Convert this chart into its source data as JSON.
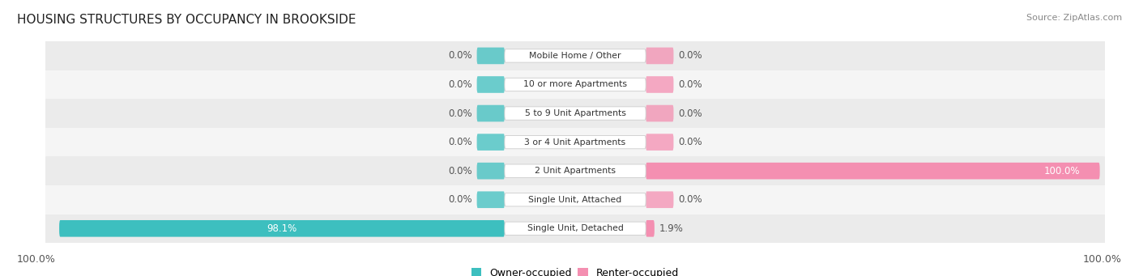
{
  "title": "HOUSING STRUCTURES BY OCCUPANCY IN BROOKSIDE",
  "source": "Source: ZipAtlas.com",
  "categories": [
    "Single Unit, Detached",
    "Single Unit, Attached",
    "2 Unit Apartments",
    "3 or 4 Unit Apartments",
    "5 to 9 Unit Apartments",
    "10 or more Apartments",
    "Mobile Home / Other"
  ],
  "owner_pct": [
    98.1,
    0.0,
    0.0,
    0.0,
    0.0,
    0.0,
    0.0
  ],
  "renter_pct": [
    1.9,
    0.0,
    100.0,
    0.0,
    0.0,
    0.0,
    0.0
  ],
  "owner_color": "#3dbfbf",
  "renter_color": "#f48fb1",
  "row_bg_even": "#ebebeb",
  "row_bg_odd": "#f5f5f5",
  "label_color": "#555555",
  "title_color": "#222222",
  "fig_width": 14.06,
  "fig_height": 3.41,
  "left_axis_label": "100.0%",
  "right_axis_label": "100.0%"
}
